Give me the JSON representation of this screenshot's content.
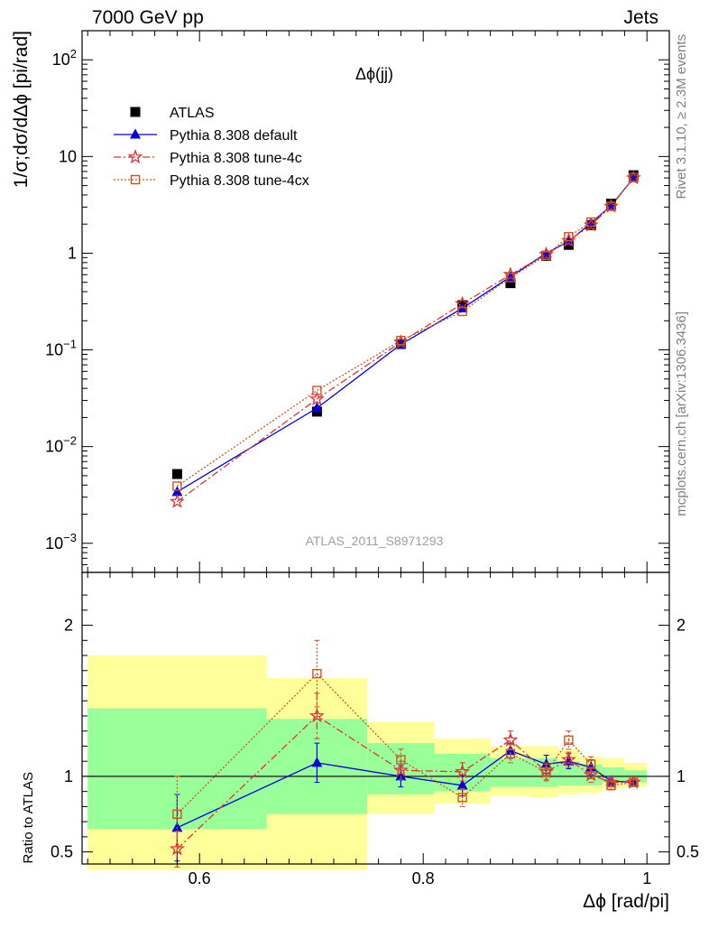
{
  "header": {
    "left": "7000 GeV pp",
    "right": "Jets"
  },
  "side_text": {
    "rivet": "Rivet 3.1.10, ≥ 2.3M events",
    "source": "mcplots.cern.ch [arXiv:1306.3436]"
  },
  "plot_label": "Δϕ(jj)",
  "watermark": "ATLAS_2011_S8971293",
  "colors": {
    "atlas": "#000000",
    "default": "#0000dd",
    "tune4c": "#dd3333",
    "tune4cx": "#cc5522",
    "band_inner": "#99ff99",
    "band_outer": "#ffff99"
  },
  "chart_data": [
    {
      "type": "scatter",
      "panel": "main",
      "ylabel": "1/σ;dσ/dΔϕ [pi/rad]",
      "yscale": "log",
      "ylim": [
        0.0005,
        200
      ],
      "xlim": [
        0.495,
        1.02
      ],
      "ytick_labels": [
        "10^-3",
        "10^-2",
        "10^-1",
        "1",
        "10",
        "10^2"
      ],
      "legend_position": "top-left",
      "x": [
        0.58,
        0.705,
        0.78,
        0.835,
        0.878,
        0.91,
        0.93,
        0.95,
        0.968,
        0.988
      ],
      "series": [
        {
          "name": "ATLAS",
          "marker": "square",
          "color": "#000000",
          "values": [
            0.0052,
            0.023,
            0.115,
            0.29,
            0.49,
            0.94,
            1.22,
            1.95,
            3.25,
            6.4
          ]
        },
        {
          "name": "Pythia 8.308 default",
          "marker": "triangle",
          "color": "#0000dd",
          "values": [
            0.0034,
            0.025,
            0.114,
            0.27,
            0.57,
            1.0,
            1.32,
            2.05,
            3.1,
            6.0
          ]
        },
        {
          "name": "Pythia 8.308 tune-4c",
          "marker": "star",
          "color": "#dd3333",
          "values": [
            0.0027,
            0.031,
            0.12,
            0.3,
            0.6,
            0.97,
            1.35,
            1.95,
            3.05,
            6.0
          ]
        },
        {
          "name": "Pythia 8.308 tune-4cx",
          "marker": "open-square",
          "color": "#cc5522",
          "values": [
            0.0039,
            0.038,
            0.125,
            0.25,
            0.56,
            0.95,
            1.48,
            2.1,
            3.05,
            6.05
          ]
        }
      ]
    },
    {
      "type": "scatter",
      "panel": "ratio",
      "ylabel": "Ratio to ATLAS",
      "xlabel": "Δϕ [rad/pi]",
      "ylim": [
        0.42,
        2.35
      ],
      "xlim": [
        0.495,
        1.02
      ],
      "ytick_labels": [
        "0.5",
        "1",
        "2"
      ],
      "xtick_labels": [
        "0.6",
        "0.8",
        "1"
      ],
      "x": [
        0.58,
        0.705,
        0.78,
        0.835,
        0.878,
        0.91,
        0.93,
        0.95,
        0.968,
        0.988
      ],
      "bands": {
        "edges": [
          0.5,
          0.66,
          0.75,
          0.81,
          0.86,
          0.895,
          0.92,
          0.94,
          0.96,
          0.98,
          1.0
        ],
        "inner": [
          [
            0.65,
            1.45
          ],
          [
            0.75,
            1.38
          ],
          [
            0.88,
            1.22
          ],
          [
            0.9,
            1.15
          ],
          [
            0.93,
            1.12
          ],
          [
            0.93,
            1.12
          ],
          [
            0.94,
            1.1
          ],
          [
            0.94,
            1.08
          ],
          [
            0.96,
            1.06
          ],
          [
            0.96,
            1.04
          ]
        ],
        "outer": [
          [
            0.38,
            1.8
          ],
          [
            0.38,
            1.65
          ],
          [
            0.75,
            1.36
          ],
          [
            0.82,
            1.25
          ],
          [
            0.87,
            1.2
          ],
          [
            0.86,
            1.2
          ],
          [
            0.88,
            1.18
          ],
          [
            0.89,
            1.13
          ],
          [
            0.92,
            1.12
          ],
          [
            0.93,
            1.09
          ]
        ]
      },
      "series": [
        {
          "name": "Pythia 8.308 default",
          "color": "#0000dd",
          "values": [
            0.66,
            1.09,
            1.0,
            0.94,
            1.17,
            1.08,
            1.1,
            1.06,
            0.97,
            0.96
          ],
          "errors": [
            0.22,
            0.13,
            0.07,
            0.07,
            0.05,
            0.06,
            0.05,
            0.05,
            0.03,
            0.02
          ]
        },
        {
          "name": "Pythia 8.308 tune-4c",
          "color": "#dd3333",
          "values": [
            0.52,
            1.4,
            1.04,
            1.03,
            1.24,
            1.03,
            1.11,
            1.01,
            0.96,
            0.96
          ],
          "errors": [
            0.12,
            0.15,
            0.06,
            0.06,
            0.06,
            0.06,
            0.05,
            0.05,
            0.03,
            0.02
          ]
        },
        {
          "name": "Pythia 8.308 tune-4cx",
          "color": "#cc5522",
          "values": [
            0.75,
            1.68,
            1.11,
            0.86,
            1.15,
            1.03,
            1.24,
            1.08,
            0.94,
            0.96
          ],
          "errors": [
            0.25,
            0.22,
            0.07,
            0.06,
            0.06,
            0.05,
            0.06,
            0.05,
            0.03,
            0.02
          ]
        }
      ]
    }
  ]
}
